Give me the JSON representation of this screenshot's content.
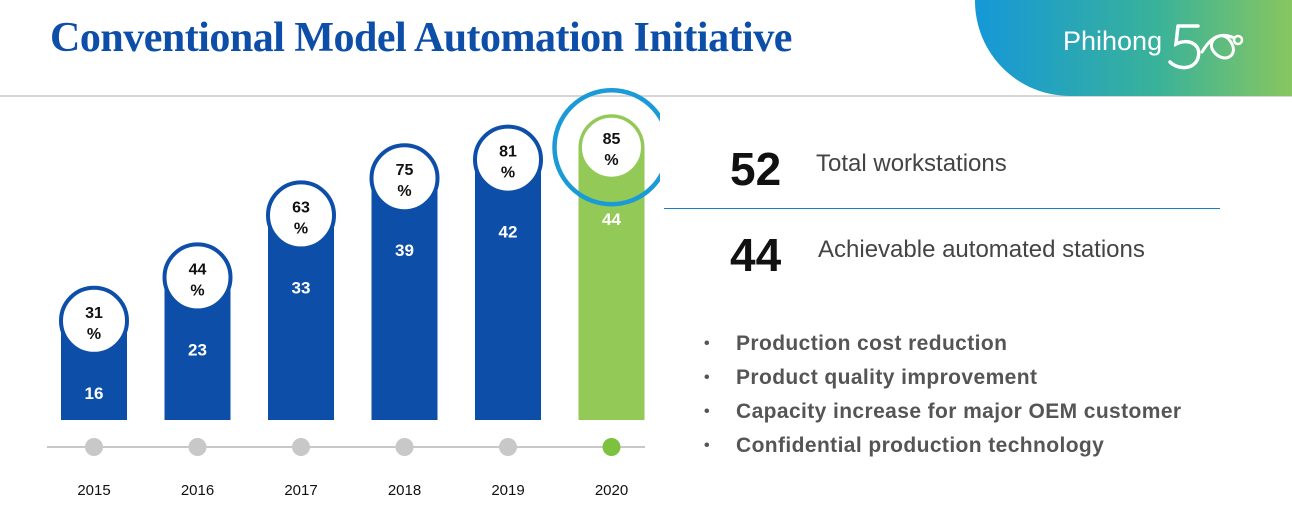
{
  "header": {
    "title": "Conventional Model Automation Initiative",
    "brand_text": "Phihong",
    "brand_mark_text": "50",
    "brand_colors": [
      "#1598d8",
      "#39b29a",
      "#8fc85a"
    ]
  },
  "colors": {
    "bar": "#0d4fa8",
    "highlight_bar": "#92c957",
    "highlight_ring": "#1a9ad6",
    "timeline": "#c8c8c8",
    "timeline_active": "#7dc13f"
  },
  "stats": [
    {
      "value": "52",
      "label": "Total workstations"
    },
    {
      "value": "44",
      "label": "Achievable automated stations"
    }
  ],
  "bullets": [
    "Production cost reduction",
    "Product quality improvement",
    "Capacity increase for major OEM customer",
    "Confidential production technology"
  ],
  "chart_data": {
    "type": "bar",
    "categories": [
      "2015",
      "2016",
      "2017",
      "2018",
      "2019",
      "2020"
    ],
    "values": [
      16,
      23,
      33,
      39,
      42,
      44
    ],
    "percent_labels": [
      "31%",
      "44%",
      "63%",
      "75%",
      "81%",
      "85%"
    ],
    "highlight_index": 5,
    "grid": false,
    "title": "",
    "xlabel": "",
    "ylabel": ""
  }
}
